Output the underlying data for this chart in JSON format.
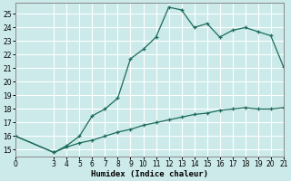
{
  "title": "",
  "xlabel": "Humidex (Indice chaleur)",
  "bg_color": "#cceaea",
  "grid_color": "#ffffff",
  "line_color": "#1a6b5a",
  "xlim": [
    0,
    21
  ],
  "ylim": [
    14.5,
    25.8
  ],
  "xticks": [
    0,
    3,
    4,
    5,
    6,
    7,
    8,
    9,
    10,
    11,
    12,
    13,
    14,
    15,
    16,
    17,
    18,
    19,
    20,
    21
  ],
  "yticks": [
    15,
    16,
    17,
    18,
    19,
    20,
    21,
    22,
    23,
    24,
    25
  ],
  "upper_x": [
    0,
    3,
    4,
    5,
    6,
    7,
    8,
    9,
    10,
    11,
    12,
    13,
    14,
    15,
    16,
    17,
    18,
    19,
    20,
    21
  ],
  "upper_y": [
    16.0,
    14.8,
    15.3,
    16.0,
    17.5,
    18.0,
    18.8,
    21.7,
    22.4,
    23.3,
    25.5,
    25.3,
    24.0,
    24.3,
    23.3,
    23.8,
    24.0,
    23.7,
    23.4,
    21.1
  ],
  "lower_x": [
    0,
    3,
    4,
    5,
    6,
    7,
    8,
    9,
    10,
    11,
    12,
    13,
    14,
    15,
    16,
    17,
    18,
    19,
    20,
    21
  ],
  "lower_y": [
    16.0,
    14.8,
    15.2,
    15.5,
    15.7,
    16.0,
    16.3,
    16.5,
    16.8,
    17.0,
    17.2,
    17.4,
    17.6,
    17.7,
    17.9,
    18.0,
    18.1,
    18.0,
    18.0,
    18.1
  ]
}
